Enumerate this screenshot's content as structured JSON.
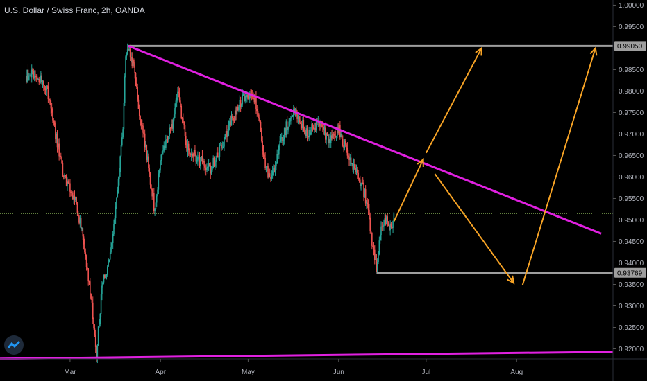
{
  "header": {
    "title": "U.S. Dollar / Swiss Franc, 2h, OANDA"
  },
  "colors": {
    "background": "#000000",
    "up_candle": "#26a69a",
    "down_candle": "#ef5350",
    "trendline": "#e020e0",
    "arrow": "#f7a325",
    "level": "#9e9e9e",
    "current_price": "#9ccc65",
    "axis_text": "#b2b5be"
  },
  "chart_data": {
    "type": "candlestick",
    "symbol": "USDCHF",
    "interval": "2h",
    "source": "OANDA",
    "x_labels": [
      "Mar",
      "Apr",
      "May",
      "Jun",
      "Jul",
      "Aug"
    ],
    "y_ticks": [
      "1.00000",
      "0.99500",
      "0.98500",
      "0.98000",
      "0.97500",
      "0.97000",
      "0.96500",
      "0.96000",
      "0.95500",
      "0.95000",
      "0.94500",
      "0.94000",
      "0.93500",
      "0.93000",
      "0.92500",
      "0.92000"
    ],
    "ylim": [
      0.9125,
      1.0012
    ],
    "price_path": [
      [
        "02-15",
        0.9835
      ],
      [
        "02-18",
        0.9845
      ],
      [
        "02-22",
        0.9805
      ],
      [
        "02-25",
        0.97
      ],
      [
        "02-28",
        0.9595
      ],
      [
        "03-03",
        0.955
      ],
      [
        "03-06",
        0.943
      ],
      [
        "03-09",
        0.927
      ],
      [
        "03-10",
        0.9185
      ],
      [
        "03-12",
        0.935
      ],
      [
        "03-15",
        0.942
      ],
      [
        "03-17",
        0.956
      ],
      [
        "03-19",
        0.97
      ],
      [
        "03-20",
        0.989
      ],
      [
        "03-21",
        0.99
      ],
      [
        "03-23",
        0.985
      ],
      [
        "03-25",
        0.974
      ],
      [
        "03-28",
        0.962
      ],
      [
        "03-30",
        0.952
      ],
      [
        "04-01",
        0.964
      ],
      [
        "04-05",
        0.972
      ],
      [
        "04-07",
        0.979
      ],
      [
        "04-10",
        0.967
      ],
      [
        "04-14",
        0.964
      ],
      [
        "04-18",
        0.962
      ],
      [
        "04-22",
        0.967
      ],
      [
        "04-26",
        0.974
      ],
      [
        "04-30",
        0.979
      ],
      [
        "05-04",
        0.977
      ],
      [
        "05-07",
        0.962
      ],
      [
        "05-09",
        0.96
      ],
      [
        "05-13",
        0.97
      ],
      [
        "05-17",
        0.976
      ],
      [
        "05-21",
        0.97
      ],
      [
        "05-25",
        0.973
      ],
      [
        "05-29",
        0.968
      ],
      [
        "06-01",
        0.971
      ],
      [
        "06-04",
        0.966
      ],
      [
        "06-06",
        0.962
      ],
      [
        "06-08",
        0.96
      ],
      [
        "06-10",
        0.956
      ],
      [
        "06-12",
        0.948
      ],
      [
        "06-13",
        0.942
      ],
      [
        "06-14",
        0.939
      ],
      [
        "06-15",
        0.946
      ],
      [
        "06-17",
        0.95
      ],
      [
        "06-19",
        0.9485
      ],
      [
        "06-20",
        0.951
      ]
    ],
    "current_price": 0.9515,
    "horizontal_levels": [
      {
        "label": "0.99050",
        "price": 0.9905,
        "from": "03-21",
        "to": "end"
      },
      {
        "label": "0.93769",
        "price": 0.93769,
        "from": "06-14",
        "to": "end"
      }
    ],
    "trendlines": [
      {
        "from": [
          "03-21",
          0.9905
        ],
        "to": [
          "08-30",
          0.9468
        ]
      },
      {
        "from": [
          "start",
          0.9177
        ],
        "to": [
          "end",
          0.9193
        ]
      }
    ],
    "arrows": [
      {
        "from": [
          "06-20",
          0.9497
        ],
        "to": [
          "06-30",
          0.9641
        ]
      },
      {
        "from": [
          "07-01",
          0.9656
        ],
        "to": [
          "07-20",
          0.99
        ]
      },
      {
        "from": [
          "07-04",
          0.9607
        ],
        "to": [
          "07-31",
          0.9353
        ]
      },
      {
        "from": [
          "08-03",
          0.9348
        ],
        "to": [
          "08-28",
          0.99
        ]
      }
    ]
  }
}
